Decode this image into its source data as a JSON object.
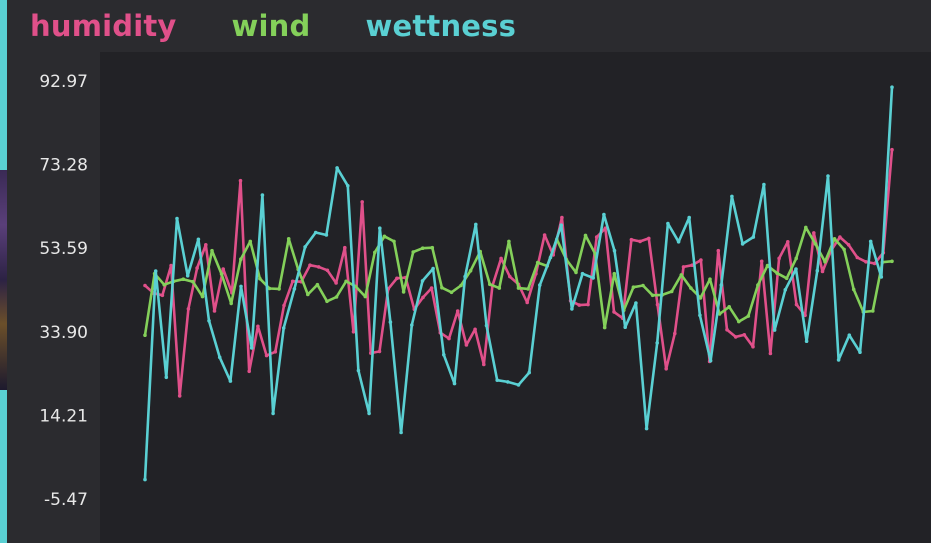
{
  "chart_data": {
    "type": "line",
    "title": "",
    "xlabel": "",
    "ylabel": "",
    "ylim": [
      -5.47,
      92.97
    ],
    "yticks": [
      "92.97",
      "73.28",
      "53.59",
      "33.90",
      "14.21",
      "-5.47"
    ],
    "grid": false,
    "legend_position": "top-left",
    "series": [
      {
        "name": "humidity",
        "color": "#e0508a",
        "values": [
          44.8,
          43.0,
          42.5,
          49.5,
          18.8,
          39.3,
          48.9,
          54.4,
          38.8,
          48.7,
          43.1,
          69.5,
          24.6,
          35.2,
          28.3,
          29.2,
          40.1,
          45.8,
          45.7,
          49.6,
          49.2,
          48.4,
          45.4,
          53.7,
          33.9,
          64.5,
          28.9,
          29.3,
          44.0,
          46.5,
          46.7,
          39.2,
          42.0,
          44.2,
          33.7,
          32.3,
          38.8,
          30.8,
          34.5,
          26.2,
          44.7,
          51.2,
          46.9,
          45.1,
          40.8,
          47.6,
          56.7,
          52.0,
          60.8,
          41.2,
          40.2,
          40.3,
          56.2,
          58.3,
          38.6,
          37.1,
          55.6,
          55.2,
          55.9,
          40.3,
          25.2,
          33.5,
          49.2,
          49.6,
          50.8,
          26.9,
          53.0,
          34.4,
          32.7,
          33.2,
          30.4,
          50.5,
          28.8,
          51.2,
          55.1,
          40.3,
          37.8,
          57.2,
          48.1,
          53.1,
          56.2,
          54.4,
          51.4,
          50.4,
          50.0,
          52.5,
          76.8
        ]
      },
      {
        "name": "wind",
        "color": "#84d05a",
        "values": [
          33.1,
          47.6,
          45.0,
          45.8,
          46.3,
          45.7,
          42.2,
          53.0,
          47.5,
          40.6,
          51.0,
          55.2,
          46.4,
          44.1,
          44.0,
          55.8,
          48.6,
          42.7,
          45.0,
          41.1,
          42.1,
          45.8,
          44.6,
          42.2,
          52.6,
          56.4,
          55.2,
          43.3,
          52.7,
          53.6,
          53.7,
          44.3,
          43.2,
          44.8,
          48.3,
          52.8,
          45.1,
          44.2,
          55.2,
          44.2,
          44.0,
          50.2,
          49.4,
          55.7,
          50.9,
          47.9,
          56.6,
          52.3,
          34.9,
          47.6,
          39.0,
          44.4,
          44.8,
          42.5,
          42.6,
          43.4,
          47.3,
          44.2,
          41.9,
          46.3,
          38.1,
          39.8,
          36.3,
          37.6,
          44.9,
          49.5,
          47.7,
          46.5,
          51.2,
          58.5,
          54.6,
          50.4,
          55.8,
          53.3,
          43.9,
          38.6,
          38.8,
          50.3,
          50.5
        ]
      },
      {
        "name": "wettness",
        "color": "#5ad0d3",
        "values": [
          -0.9,
          48.2,
          23.2,
          60.6,
          47.1,
          55.7,
          36.5,
          27.9,
          22.3,
          44.6,
          30.1,
          66.1,
          14.7,
          34.8,
          44.0,
          53.9,
          57.3,
          56.7,
          72.5,
          68.3,
          24.8,
          14.7,
          58.3,
          36.2,
          10.2,
          35.5,
          45.9,
          48.8,
          28.5,
          21.7,
          46.9,
          59.2,
          35.4,
          22.5,
          22.1,
          21.4,
          24.3,
          44.9,
          51.4,
          59.0,
          39.3,
          47.6,
          46.6,
          61.5,
          53.0,
          35.0,
          40.7,
          11.1,
          31.3,
          59.4,
          55.1,
          60.8,
          37.8,
          27.1,
          44.9,
          65.8,
          54.6,
          56.2,
          68.6,
          34.3,
          43.8,
          48.7,
          31.7,
          48.3,
          70.6,
          27.3,
          33.1,
          29.1,
          55.2,
          46.8,
          91.5
        ]
      }
    ]
  }
}
